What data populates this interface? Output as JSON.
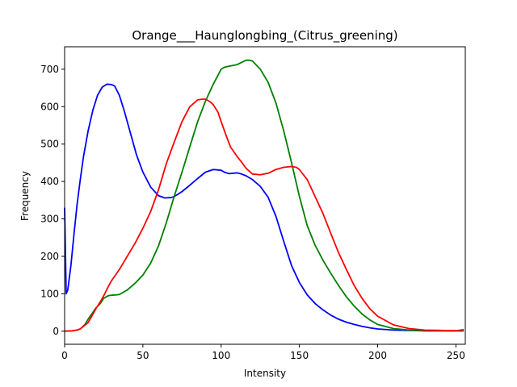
{
  "chart_data": {
    "type": "line",
    "title": "Orange___Haunglongbing_(Citrus_greening)",
    "xlabel": "Intensity",
    "ylabel": "Frequency",
    "xlim": [
      0,
      256
    ],
    "ylim": [
      -35,
      760
    ],
    "xticks": [
      0,
      50,
      100,
      150,
      200,
      250
    ],
    "yticks": [
      0,
      100,
      200,
      300,
      400,
      500,
      600,
      700
    ],
    "grid": false,
    "legend": "none",
    "series": [
      {
        "color": "#0000ff",
        "x": [
          0,
          1,
          2,
          4,
          6,
          8,
          10,
          12,
          15,
          18,
          21,
          24,
          27,
          30,
          32,
          35,
          38,
          42,
          46,
          50,
          55,
          60,
          64,
          68,
          70,
          72,
          75,
          80,
          85,
          90,
          95,
          100,
          102,
          105,
          110,
          113,
          116,
          120,
          125,
          130,
          135,
          140,
          145,
          150,
          155,
          160,
          165,
          170,
          175,
          180,
          185,
          190,
          195,
          200,
          210,
          220,
          230,
          240,
          250,
          255
        ],
        "y": [
          330,
          100,
          110,
          175,
          260,
          340,
          405,
          465,
          535,
          590,
          630,
          652,
          660,
          659,
          655,
          630,
          590,
          530,
          470,
          425,
          385,
          362,
          356,
          357,
          360,
          365,
          373,
          390,
          408,
          425,
          432,
          430,
          425,
          421,
          423,
          420,
          415,
          405,
          387,
          358,
          307,
          240,
          175,
          130,
          97,
          74,
          57,
          43,
          32,
          24,
          18,
          13,
          9,
          6,
          3,
          2,
          1,
          1,
          1,
          1
        ]
      },
      {
        "color": "#008000",
        "x": [
          0,
          5,
          8,
          10,
          13,
          15,
          18,
          20,
          23,
          25,
          28,
          30,
          33,
          35,
          40,
          45,
          50,
          55,
          60,
          65,
          70,
          75,
          80,
          85,
          90,
          95,
          100,
          102,
          105,
          110,
          113,
          116,
          118,
          120,
          125,
          130,
          135,
          140,
          145,
          150,
          155,
          160,
          165,
          170,
          175,
          180,
          185,
          190,
          195,
          200,
          210,
          220,
          230,
          240,
          250,
          255
        ],
        "y": [
          0,
          1,
          3,
          6,
          18,
          32,
          50,
          62,
          75,
          88,
          95,
          96,
          97,
          98,
          110,
          128,
          150,
          182,
          228,
          290,
          360,
          425,
          493,
          560,
          615,
          660,
          700,
          705,
          708,
          712,
          718,
          724,
          724,
          722,
          700,
          665,
          610,
          535,
          450,
          360,
          282,
          230,
          190,
          155,
          122,
          92,
          67,
          46,
          30,
          18,
          7,
          3,
          1,
          1,
          1,
          1
        ]
      },
      {
        "color": "#ff0000",
        "x": [
          0,
          5,
          8,
          10,
          15,
          18,
          20,
          23,
          25,
          28,
          30,
          35,
          40,
          45,
          50,
          55,
          60,
          65,
          70,
          75,
          80,
          85,
          88,
          90,
          93,
          95,
          98,
          100,
          103,
          106,
          110,
          113,
          116,
          120,
          125,
          130,
          135,
          140,
          145,
          148,
          150,
          155,
          160,
          165,
          170,
          175,
          180,
          185,
          190,
          195,
          200,
          210,
          220,
          230,
          240,
          250,
          255
        ],
        "y": [
          0,
          1,
          3,
          6,
          23,
          45,
          60,
          80,
          95,
          120,
          135,
          165,
          200,
          235,
          275,
          320,
          378,
          448,
          505,
          560,
          600,
          618,
          620,
          620,
          613,
          605,
          585,
          560,
          525,
          492,
          468,
          452,
          435,
          420,
          418,
          422,
          432,
          438,
          440,
          438,
          432,
          405,
          360,
          315,
          262,
          210,
          165,
          122,
          88,
          60,
          40,
          17,
          7,
          3,
          2,
          1,
          4
        ]
      }
    ]
  }
}
